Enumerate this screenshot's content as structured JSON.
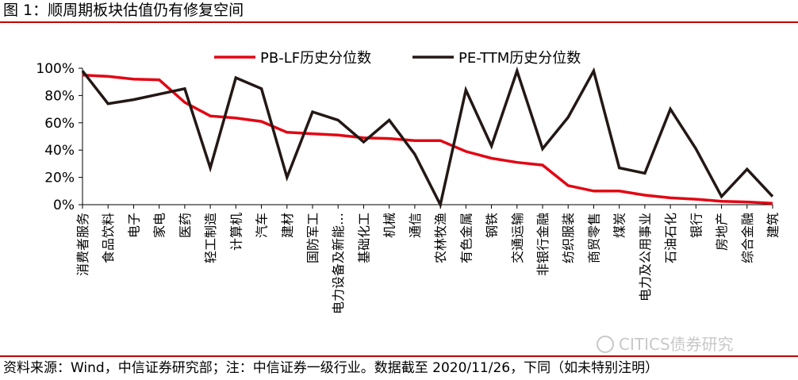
{
  "figure_title": "图 1：顺周期板块估值仍有修复空间",
  "source_note": "资料来源：Wind，中信证券研究部；注：中信证券一级行业。数据截至 2020/11/26，下同（如未特别注明）",
  "watermark": "CITICS债券研究",
  "colors": {
    "accent": "#c00000",
    "pb_series": "#e30613",
    "pe_series": "#231815"
  },
  "chart_data": {
    "type": "line",
    "title": "",
    "xlabel": "",
    "ylabel": "",
    "ylim": [
      0,
      100
    ],
    "yticks": [
      "0%",
      "20%",
      "40%",
      "60%",
      "80%",
      "100%"
    ],
    "ytick_values": [
      0,
      20,
      40,
      60,
      80,
      100
    ],
    "grid": false,
    "legend_position": "top",
    "categories": [
      "消费者服务",
      "食品饮料",
      "电子",
      "家电",
      "医药",
      "轻工制造",
      "计算机",
      "汽车",
      "建材",
      "国防军工",
      "电力设备及新能…",
      "基础化工",
      "机械",
      "通信",
      "农林牧渔",
      "有色金属",
      "钢铁",
      "交通运输",
      "非银行金融",
      "纺织服装",
      "商贸零售",
      "煤炭",
      "电力及公用事业",
      "石油石化",
      "银行",
      "房地产",
      "综合金融",
      "建筑"
    ],
    "series": [
      {
        "name": "PB-LF历史分位数",
        "color": "#e30613",
        "values": [
          95,
          94,
          92,
          91.5,
          75,
          65,
          63.5,
          61,
          53,
          52,
          51,
          49,
          48.5,
          47,
          47,
          39,
          34,
          31,
          29,
          14,
          10,
          10,
          7,
          5,
          4,
          2.5,
          2,
          1
        ]
      },
      {
        "name": "PE-TTM历史分位数",
        "color": "#231815",
        "values": [
          98,
          74,
          77,
          81,
          85,
          27,
          93,
          85,
          20,
          68,
          62,
          46,
          62,
          37,
          0,
          84,
          43,
          98,
          41,
          64,
          98,
          27,
          23,
          70,
          41,
          6,
          26,
          6
        ]
      }
    ]
  }
}
